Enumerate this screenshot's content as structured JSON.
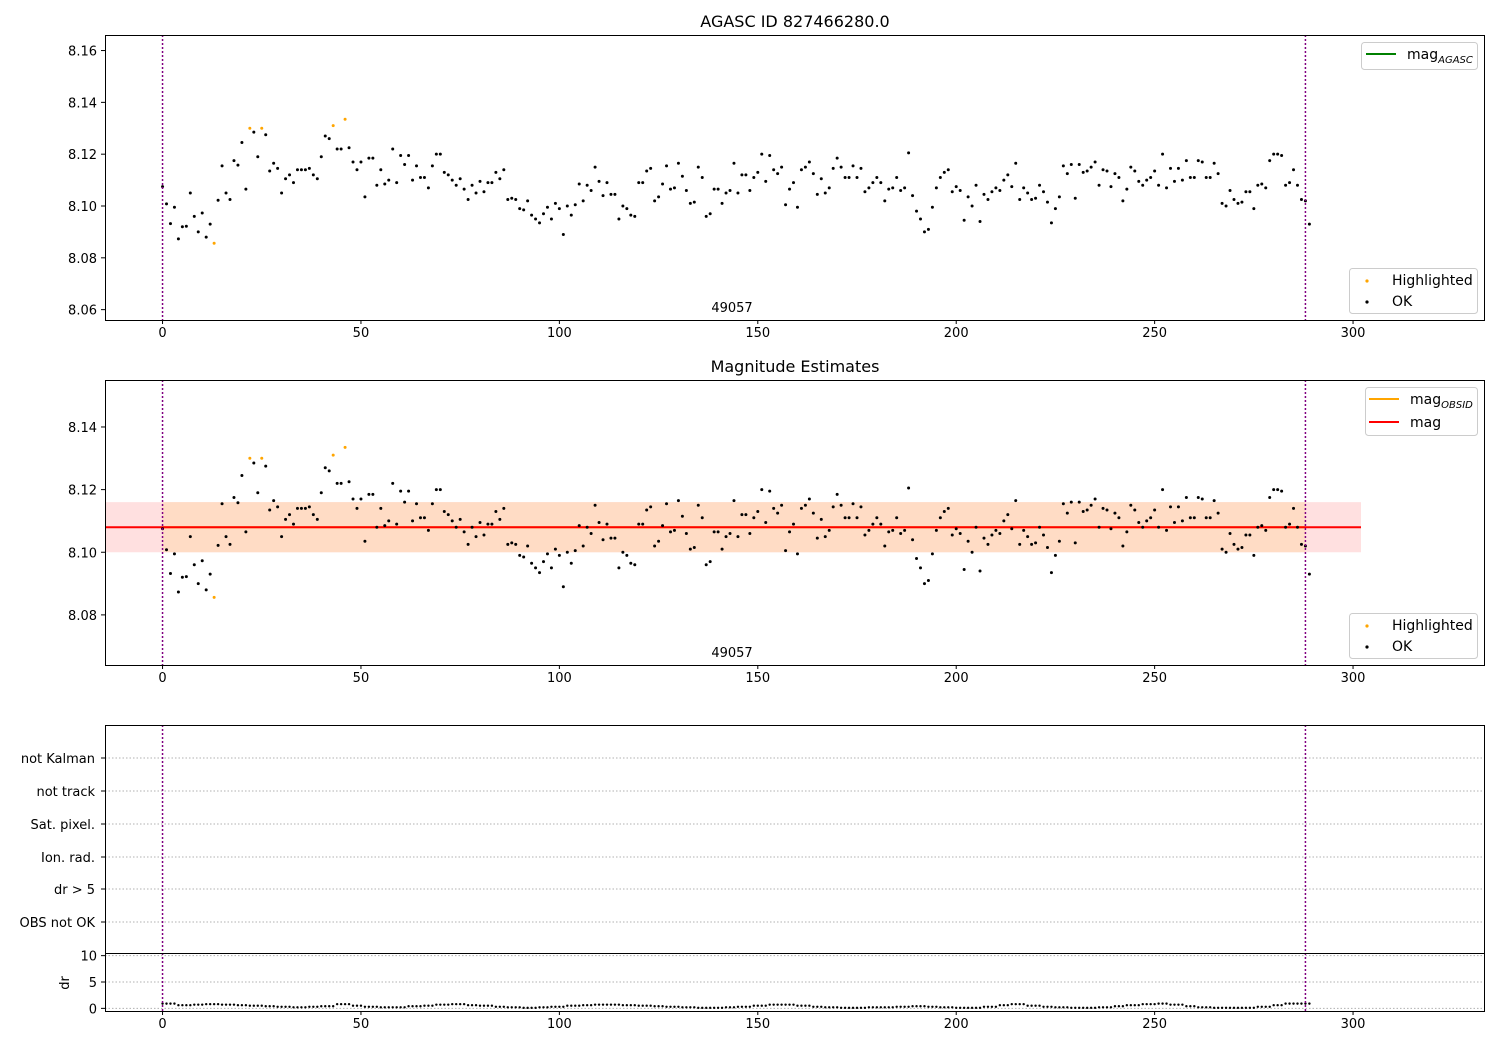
{
  "chart_data": [
    {
      "type": "scatter",
      "title": "AGASC ID 827466280.0",
      "annotation": "49057",
      "xlim": [
        -14.5,
        333
      ],
      "ylim": [
        8.056,
        8.166
      ],
      "xticks": [
        0,
        50,
        100,
        150,
        200,
        250,
        300
      ],
      "yticks": [
        8.06,
        8.08,
        8.1,
        8.12,
        8.14,
        8.16
      ],
      "ytick_labels": [
        "8.06",
        "8.08",
        "8.10",
        "8.12",
        "8.14",
        "8.16"
      ],
      "vlines": [
        0,
        288
      ],
      "legend_lines": [
        {
          "name": "mag",
          "subscript": "AGASC",
          "color": "#008000"
        }
      ],
      "legend_points": [
        {
          "name": "Highlighted",
          "color": "#ffa500"
        },
        {
          "name": "OK",
          "color": "#000000"
        }
      ],
      "grid": false
    },
    {
      "type": "scatter",
      "title": "Magnitude Estimates",
      "annotation": "49057",
      "xlim": [
        -14.5,
        333
      ],
      "ylim": [
        8.064,
        8.155
      ],
      "xticks": [
        0,
        50,
        100,
        150,
        200,
        250,
        300
      ],
      "yticks": [
        8.08,
        8.1,
        8.12,
        8.14
      ],
      "ytick_labels": [
        "8.08",
        "8.10",
        "8.12",
        "8.14"
      ],
      "vlines": [
        0,
        288
      ],
      "mag_mean": 8.108,
      "mag_band": [
        8.1,
        8.116
      ],
      "mag_line_xrange": [
        -14.5,
        302
      ],
      "legend_lines": [
        {
          "name": "mag",
          "subscript": "OBSID",
          "color": "#ffa500"
        },
        {
          "name": "mag",
          "subscript": "",
          "color": "#ff0000"
        }
      ],
      "legend_points": [
        {
          "name": "Highlighted",
          "color": "#ffa500"
        },
        {
          "name": "OK",
          "color": "#000000"
        }
      ],
      "grid": false
    },
    {
      "type": "scatter",
      "xlim": [
        -14.5,
        333
      ],
      "flag_labels": [
        "not Kalman",
        "not track",
        "Sat. pixel.",
        "Ion. rad.",
        "dr > 5",
        "OBS not OK"
      ],
      "ylabel": "dr",
      "ylim": [
        -0.5,
        10.5
      ],
      "yticks": [
        0,
        5,
        10
      ],
      "ytick_labels": [
        "0",
        "5",
        "10"
      ],
      "xticks": [
        0,
        50,
        100,
        150,
        200,
        250,
        300
      ],
      "vlines": [
        0,
        288
      ],
      "dr_values": [
        0.9,
        0.6,
        0.7,
        0.8,
        0.7,
        0.6,
        0.5,
        0.4,
        0.3,
        0.2,
        0.3,
        0.4,
        0.8,
        0.5,
        0.3,
        0.2,
        0.2,
        0.4,
        0.5,
        0.7,
        0.8,
        0.6,
        0.5,
        0.3,
        0.2,
        0.1,
        0.2,
        0.3,
        0.5,
        0.6,
        0.7,
        0.7,
        0.6,
        0.5,
        0.4,
        0.3,
        0.2,
        0.1,
        0.1,
        0.2,
        0.3,
        0.5,
        0.7,
        0.7,
        0.5,
        0.3,
        0.2,
        0.1,
        0.1,
        0.2,
        0.2,
        0.3,
        0.4,
        0.3,
        0.2,
        0.1,
        0.1,
        0.3,
        0.6,
        0.8,
        0.5,
        0.3,
        0.2,
        0.1,
        0.1,
        0.2,
        0.4,
        0.6,
        0.8,
        0.9,
        0.7,
        0.4,
        0.2,
        0.1,
        0.1,
        0.1,
        0.3,
        0.6,
        0.9,
        0.9
      ]
    }
  ],
  "series": {
    "ok_color": "#000000",
    "highlight_color": "#ffa500",
    "agasc_color": "#008000",
    "mag_color": "#ff0000",
    "band_color": "#ffcccc",
    "band_overlap_color": "#ffdab9",
    "vline_color": "#800080"
  },
  "points": {
    "x_start": 0,
    "x_step": 1,
    "values": [
      8.1075,
      8.1008,
      8.0932,
      8.0995,
      8.0873,
      8.092,
      8.0922,
      8.105,
      8.096,
      8.09,
      8.0973,
      8.088,
      8.093,
      8.0856,
      8.1022,
      8.1155,
      8.105,
      8.1025,
      8.1175,
      8.1158,
      8.1245,
      8.1065,
      8.13,
      8.1285,
      8.119,
      8.13,
      8.1275,
      8.1135,
      8.1165,
      8.1145,
      8.105,
      8.1105,
      8.112,
      8.109,
      8.114,
      8.114,
      8.114,
      8.1145,
      8.112,
      8.1105,
      8.119,
      8.127,
      8.126,
      8.131,
      8.122,
      8.122,
      8.1335,
      8.1225,
      8.117,
      8.114,
      8.117,
      8.1035,
      8.1185,
      8.1185,
      8.108,
      8.114,
      8.1085,
      8.11,
      8.122,
      8.109,
      8.1195,
      8.116,
      8.1195,
      8.11,
      8.1155,
      8.111,
      8.111,
      8.107,
      8.1155,
      8.12,
      8.12,
      8.113,
      8.112,
      8.11,
      8.108,
      8.1105,
      8.1065,
      8.1025,
      8.108,
      8.105,
      8.1095,
      8.1055,
      8.109,
      8.109,
      8.113,
      8.1105,
      8.114,
      8.1025,
      8.103,
      8.1025,
      8.099,
      8.0985,
      8.102,
      8.0965,
      8.095,
      8.0935,
      8.097,
      8.0995,
      8.095,
      8.101,
      8.099,
      8.089,
      8.1,
      8.0965,
      8.1005,
      8.1085,
      8.102,
      8.108,
      8.106,
      8.115,
      8.1095,
      8.104,
      8.109,
      8.1045,
      8.1045,
      8.095,
      8.1,
      8.099,
      8.0965,
      8.096,
      8.109,
      8.109,
      8.1135,
      8.1145,
      8.102,
      8.1035,
      8.1085,
      8.1155,
      8.1065,
      8.107,
      8.1165,
      8.1115,
      8.106,
      8.101,
      8.1015,
      8.115,
      8.111,
      8.096,
      8.097,
      8.1065,
      8.1065,
      8.101,
      8.105,
      8.106,
      8.1165,
      8.105,
      8.112,
      8.112,
      8.106,
      8.111,
      8.113,
      8.12,
      8.1095,
      8.1195,
      8.114,
      8.1125,
      8.115,
      8.1005,
      8.1065,
      8.109,
      8.0995,
      8.114,
      8.115,
      8.117,
      8.1125,
      8.1045,
      8.1105,
      8.105,
      8.107,
      8.1145,
      8.1185,
      8.115,
      8.111,
      8.111,
      8.1155,
      8.111,
      8.1145,
      8.1055,
      8.107,
      8.109,
      8.111,
      8.109,
      8.102,
      8.1065,
      8.107,
      8.111,
      8.106,
      8.107,
      8.1205,
      8.104,
      8.098,
      8.095,
      8.09,
      8.091,
      8.0995,
      8.107,
      8.111,
      8.113,
      8.114,
      8.1055,
      8.1075,
      8.106,
      8.0945,
      8.1035,
      8.1,
      8.108,
      8.094,
      8.1045,
      8.1025,
      8.1055,
      8.107,
      8.106,
      8.11,
      8.112,
      8.1075,
      8.1165,
      8.1025,
      8.107,
      8.105,
      8.1025,
      8.103,
      8.108,
      8.1055,
      8.1015,
      8.0935,
      8.099,
      8.1035,
      8.1155,
      8.1125,
      8.116,
      8.103,
      8.116,
      8.113,
      8.1135,
      8.115,
      8.117,
      8.108,
      8.114,
      8.1135,
      8.1075,
      8.1125,
      8.111,
      8.102,
      8.1065,
      8.115,
      8.1135,
      8.1095,
      8.108,
      8.11,
      8.111,
      8.1135,
      8.108,
      8.12,
      8.107,
      8.1145,
      8.1095,
      8.1145,
      8.11,
      8.1175,
      8.111,
      8.111,
      8.1175,
      8.117,
      8.111,
      8.111,
      8.1165,
      8.1125,
      8.101,
      8.1,
      8.106,
      8.1025,
      8.101,
      8.1015,
      8.1055,
      8.1055,
      8.099,
      8.108,
      8.1085,
      8.107,
      8.1175,
      8.12,
      8.12,
      8.1195,
      8.108,
      8.109,
      8.114,
      8.108,
      8.1025,
      8.102,
      8.093
    ],
    "highlighted_indices": [
      13,
      22,
      25,
      43,
      46
    ]
  }
}
